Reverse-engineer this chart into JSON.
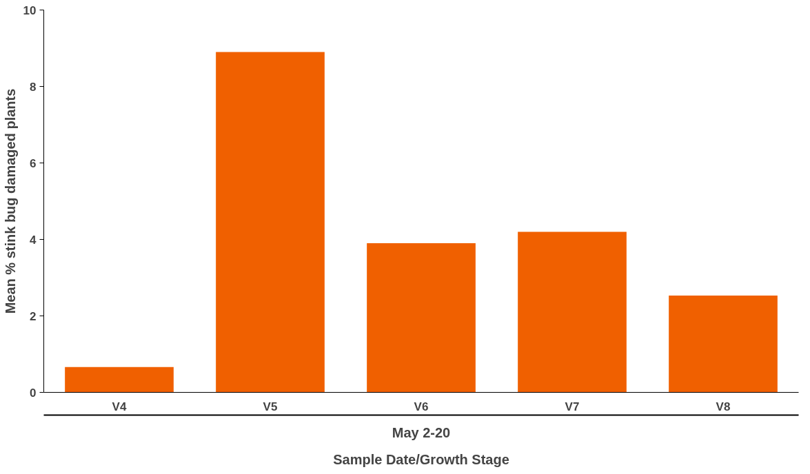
{
  "chart_data": {
    "type": "bar",
    "ylabel": "Mean % stink bug damaged plants",
    "xlabel": "Sample Date/Growth Stage",
    "annotations": [
      "May 2-20"
    ],
    "categories": [
      "V4",
      "V5",
      "V6",
      "V7",
      "V8"
    ],
    "values": [
      0.66,
      8.9,
      3.9,
      4.2,
      2.53
    ],
    "color": "#f06000",
    "ylim": [
      0,
      10
    ],
    "yticks": [
      0,
      2,
      4,
      6,
      8,
      10
    ],
    "grid": false
  }
}
